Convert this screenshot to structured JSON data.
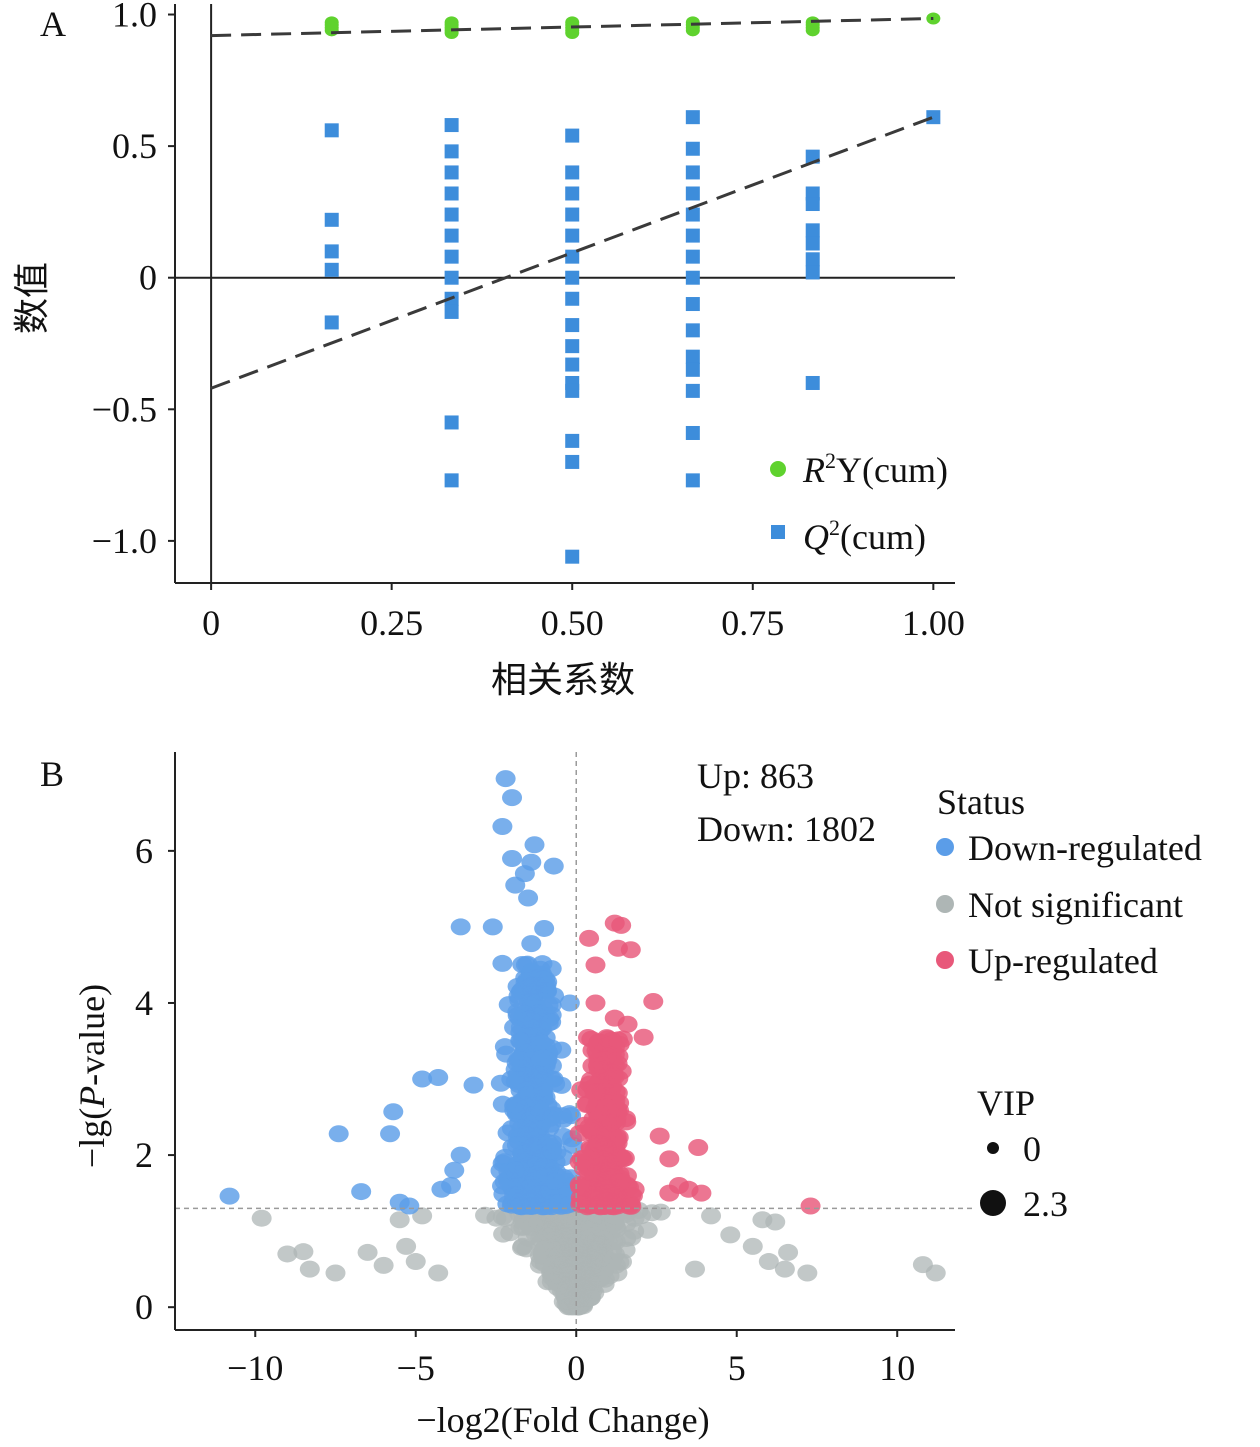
{
  "colors": {
    "r2_green": "#5fd22e",
    "q2_blue": "#3d8ddb",
    "down_blue": "#5b9de8",
    "not_sig_gray": "#aeb6b5",
    "up_red": "#e8587a",
    "dashed_line": "#3a3a3a",
    "threshold_line": "#9a9a9a"
  },
  "chart_data": [
    {
      "panel_label": "A",
      "type": "scatter",
      "xlabel": "相关系数",
      "ylabel": "数值",
      "xlim": [
        -0.05,
        1.03
      ],
      "ylim": [
        -1.16,
        1.04
      ],
      "x_ticks": [
        0,
        0.25,
        0.5,
        0.75,
        1.0
      ],
      "x_tick_labels": [
        "0",
        "0.25",
        "0.50",
        "0.75",
        "1.00"
      ],
      "y_ticks": [
        1.0,
        0.5,
        0,
        -0.5,
        -1.0
      ],
      "y_tick_labels": [
        "1.0",
        "0.5",
        "0",
        "−0.5",
        "−1.0"
      ],
      "reference_lines": {
        "x": 0,
        "y": 0
      },
      "legend_position": "bottom-right",
      "series": [
        {
          "name": "R2Y(cum)",
          "legend_parts": {
            "italic": "R",
            "sup": "2",
            "rest": "Y(cum)"
          },
          "marker": "circle",
          "color_key": "r2_green",
          "points": [
            {
              "x": 0.167,
              "y": 0.97
            },
            {
              "x": 0.167,
              "y": 0.96
            },
            {
              "x": 0.167,
              "y": 0.95
            },
            {
              "x": 0.167,
              "y": 0.94
            },
            {
              "x": 0.333,
              "y": 0.97
            },
            {
              "x": 0.333,
              "y": 0.96
            },
            {
              "x": 0.333,
              "y": 0.95
            },
            {
              "x": 0.333,
              "y": 0.94
            },
            {
              "x": 0.333,
              "y": 0.93
            },
            {
              "x": 0.5,
              "y": 0.97
            },
            {
              "x": 0.5,
              "y": 0.96
            },
            {
              "x": 0.5,
              "y": 0.95
            },
            {
              "x": 0.5,
              "y": 0.94
            },
            {
              "x": 0.5,
              "y": 0.93
            },
            {
              "x": 0.667,
              "y": 0.97
            },
            {
              "x": 0.667,
              "y": 0.96
            },
            {
              "x": 0.667,
              "y": 0.95
            },
            {
              "x": 0.667,
              "y": 0.94
            },
            {
              "x": 0.833,
              "y": 0.97
            },
            {
              "x": 0.833,
              "y": 0.96
            },
            {
              "x": 0.833,
              "y": 0.95
            },
            {
              "x": 0.833,
              "y": 0.94
            },
            {
              "x": 1.0,
              "y": 0.985
            }
          ],
          "fit_line": {
            "x": [
              0,
              1.0
            ],
            "y": [
              0.92,
              0.985
            ]
          }
        },
        {
          "name": "Q2(cum)",
          "legend_parts": {
            "italic": "Q",
            "sup": "2",
            "rest": "(cum)"
          },
          "marker": "square",
          "color_key": "q2_blue",
          "points": [
            {
              "x": 0.167,
              "y": 0.56
            },
            {
              "x": 0.167,
              "y": 0.22
            },
            {
              "x": 0.167,
              "y": 0.1
            },
            {
              "x": 0.167,
              "y": 0.03
            },
            {
              "x": 0.167,
              "y": -0.17
            },
            {
              "x": 0.333,
              "y": 0.58
            },
            {
              "x": 0.333,
              "y": 0.48
            },
            {
              "x": 0.333,
              "y": 0.4
            },
            {
              "x": 0.333,
              "y": 0.32
            },
            {
              "x": 0.333,
              "y": 0.24
            },
            {
              "x": 0.333,
              "y": 0.16
            },
            {
              "x": 0.333,
              "y": 0.08
            },
            {
              "x": 0.333,
              "y": 0.0
            },
            {
              "x": 0.333,
              "y": -0.08
            },
            {
              "x": 0.333,
              "y": -0.13
            },
            {
              "x": 0.333,
              "y": -0.55
            },
            {
              "x": 0.333,
              "y": -0.77
            },
            {
              "x": 0.5,
              "y": 0.54
            },
            {
              "x": 0.5,
              "y": 0.4
            },
            {
              "x": 0.5,
              "y": 0.32
            },
            {
              "x": 0.5,
              "y": 0.24
            },
            {
              "x": 0.5,
              "y": 0.16
            },
            {
              "x": 0.5,
              "y": 0.08
            },
            {
              "x": 0.5,
              "y": 0.0
            },
            {
              "x": 0.5,
              "y": -0.08
            },
            {
              "x": 0.5,
              "y": -0.18
            },
            {
              "x": 0.5,
              "y": -0.26
            },
            {
              "x": 0.5,
              "y": -0.33
            },
            {
              "x": 0.5,
              "y": -0.4
            },
            {
              "x": 0.5,
              "y": -0.43
            },
            {
              "x": 0.5,
              "y": -0.62
            },
            {
              "x": 0.5,
              "y": -0.7
            },
            {
              "x": 0.5,
              "y": -1.06
            },
            {
              "x": 0.667,
              "y": 0.61
            },
            {
              "x": 0.667,
              "y": 0.49
            },
            {
              "x": 0.667,
              "y": 0.4
            },
            {
              "x": 0.667,
              "y": 0.32
            },
            {
              "x": 0.667,
              "y": 0.24
            },
            {
              "x": 0.667,
              "y": 0.16
            },
            {
              "x": 0.667,
              "y": 0.08
            },
            {
              "x": 0.667,
              "y": 0.0
            },
            {
              "x": 0.667,
              "y": -0.1
            },
            {
              "x": 0.667,
              "y": -0.2
            },
            {
              "x": 0.667,
              "y": -0.3
            },
            {
              "x": 0.667,
              "y": -0.35
            },
            {
              "x": 0.667,
              "y": -0.43
            },
            {
              "x": 0.667,
              "y": -0.59
            },
            {
              "x": 0.667,
              "y": -0.77
            },
            {
              "x": 0.833,
              "y": 0.46
            },
            {
              "x": 0.833,
              "y": 0.32
            },
            {
              "x": 0.833,
              "y": 0.28
            },
            {
              "x": 0.833,
              "y": 0.18
            },
            {
              "x": 0.833,
              "y": 0.13
            },
            {
              "x": 0.833,
              "y": 0.07
            },
            {
              "x": 0.833,
              "y": 0.02
            },
            {
              "x": 0.833,
              "y": -0.4
            },
            {
              "x": 1.0,
              "y": 0.61
            }
          ],
          "fit_line": {
            "x": [
              0,
              1.0
            ],
            "y": [
              -0.42,
              0.61
            ]
          }
        }
      ]
    },
    {
      "panel_label": "B",
      "type": "scatter",
      "subtype": "volcano",
      "xlabel": "−log2(Fold Change)",
      "ylabel": "−lg(P-value)",
      "ylabel_parts": {
        "pre": "−lg(",
        "italic": "P",
        "post": "-value)"
      },
      "xlim": [
        -12.5,
        11.8
      ],
      "ylim": [
        -0.3,
        7.3
      ],
      "x_ticks": [
        -10,
        -5,
        0,
        5,
        10
      ],
      "x_tick_labels": [
        "−10",
        "−5",
        "0",
        "5",
        "10"
      ],
      "y_ticks": [
        0,
        2,
        4,
        6
      ],
      "y_tick_labels": [
        "0",
        "2",
        "4",
        "6"
      ],
      "threshold_lines": {
        "x": 0,
        "y": 1.3
      },
      "annotations": [
        "Up: 863",
        "Down: 1802"
      ],
      "legend": {
        "title": "Status",
        "position": "right",
        "items": [
          {
            "label": "Down-regulated",
            "color_key": "down_blue"
          },
          {
            "label": "Not significant",
            "color_key": "not_sig_gray"
          },
          {
            "label": "Up-regulated",
            "color_key": "up_red"
          }
        ]
      },
      "size_legend": {
        "title": "VIP",
        "items": [
          {
            "label": "0",
            "value": 0
          },
          {
            "label": "2.3",
            "value": 2.3
          }
        ]
      },
      "counts": {
        "up": 863,
        "down": 1802
      },
      "series": [
        {
          "name": "Down-regulated",
          "color_key": "down_blue",
          "cluster": {
            "x_range": [
              -3.6,
              -0.1
            ],
            "y_range": [
              1.3,
              4.6
            ],
            "peak_x": -1.3
          },
          "points": [
            {
              "x": -2.2,
              "y": 6.95
            },
            {
              "x": -2.0,
              "y": 6.7
            },
            {
              "x": -2.3,
              "y": 6.32
            },
            {
              "x": -1.3,
              "y": 6.08
            },
            {
              "x": -2.0,
              "y": 5.9
            },
            {
              "x": -0.7,
              "y": 5.8
            },
            {
              "x": -1.4,
              "y": 5.85
            },
            {
              "x": -1.6,
              "y": 5.7
            },
            {
              "x": -1.9,
              "y": 5.55
            },
            {
              "x": -1.5,
              "y": 5.38
            },
            {
              "x": -3.6,
              "y": 5.0
            },
            {
              "x": -2.6,
              "y": 5.0
            },
            {
              "x": -1.0,
              "y": 4.98
            },
            {
              "x": -1.4,
              "y": 4.78
            },
            {
              "x": -2.3,
              "y": 4.52
            },
            {
              "x": -0.2,
              "y": 4.0
            },
            {
              "x": -4.8,
              "y": 3.0
            },
            {
              "x": -4.3,
              "y": 3.02
            },
            {
              "x": -3.2,
              "y": 2.92
            },
            {
              "x": -5.7,
              "y": 2.57
            },
            {
              "x": -7.4,
              "y": 2.28
            },
            {
              "x": -5.8,
              "y": 2.28
            },
            {
              "x": -3.6,
              "y": 2.0
            },
            {
              "x": -3.8,
              "y": 1.8
            },
            {
              "x": -10.8,
              "y": 1.46
            },
            {
              "x": -6.7,
              "y": 1.52
            },
            {
              "x": -5.5,
              "y": 1.38
            },
            {
              "x": -5.2,
              "y": 1.33
            },
            {
              "x": -4.2,
              "y": 1.55
            },
            {
              "x": -3.9,
              "y": 1.6
            }
          ]
        },
        {
          "name": "Not significant",
          "color_key": "not_sig_gray",
          "cluster": {
            "x_range": [
              -4.5,
              4.5
            ],
            "y_range": [
              0.0,
              1.3
            ],
            "peak_x": 0
          },
          "points": [
            {
              "x": -9.8,
              "y": 1.17
            },
            {
              "x": -9.0,
              "y": 0.7
            },
            {
              "x": -8.5,
              "y": 0.73
            },
            {
              "x": -8.3,
              "y": 0.5
            },
            {
              "x": -7.5,
              "y": 0.45
            },
            {
              "x": -6.5,
              "y": 0.72
            },
            {
              "x": -6.0,
              "y": 0.55
            },
            {
              "x": -5.5,
              "y": 1.15
            },
            {
              "x": -5.3,
              "y": 0.8
            },
            {
              "x": -5.0,
              "y": 0.6
            },
            {
              "x": -4.8,
              "y": 1.2
            },
            {
              "x": 4.2,
              "y": 1.2
            },
            {
              "x": 4.8,
              "y": 0.95
            },
            {
              "x": 5.5,
              "y": 0.8
            },
            {
              "x": 5.8,
              "y": 1.15
            },
            {
              "x": 6.2,
              "y": 1.12
            },
            {
              "x": 6.0,
              "y": 0.6
            },
            {
              "x": 6.5,
              "y": 0.5
            },
            {
              "x": 7.2,
              "y": 0.45
            },
            {
              "x": 6.6,
              "y": 0.72
            },
            {
              "x": 10.8,
              "y": 0.56
            },
            {
              "x": 11.2,
              "y": 0.45
            },
            {
              "x": 3.7,
              "y": 0.5
            },
            {
              "x": -4.3,
              "y": 0.45
            }
          ]
        },
        {
          "name": "Up-regulated",
          "color_key": "up_red",
          "cluster": {
            "x_range": [
              0.1,
              3.2
            ],
            "y_range": [
              1.3,
              3.6
            ],
            "peak_x": 0.9
          },
          "points": [
            {
              "x": 1.2,
              "y": 5.05
            },
            {
              "x": 1.4,
              "y": 5.02
            },
            {
              "x": 0.4,
              "y": 4.85
            },
            {
              "x": 1.3,
              "y": 4.72
            },
            {
              "x": 1.7,
              "y": 4.7
            },
            {
              "x": 0.6,
              "y": 4.5
            },
            {
              "x": 2.4,
              "y": 4.02
            },
            {
              "x": 0.6,
              "y": 4.0
            },
            {
              "x": 1.6,
              "y": 3.72
            },
            {
              "x": 2.1,
              "y": 3.55
            },
            {
              "x": 1.2,
              "y": 3.8
            },
            {
              "x": 2.6,
              "y": 2.25
            },
            {
              "x": 3.8,
              "y": 2.1
            },
            {
              "x": 2.9,
              "y": 1.95
            },
            {
              "x": 3.2,
              "y": 1.6
            },
            {
              "x": 3.5,
              "y": 1.55
            },
            {
              "x": 3.9,
              "y": 1.5
            },
            {
              "x": 2.9,
              "y": 1.5
            },
            {
              "x": 7.3,
              "y": 1.33
            }
          ]
        }
      ]
    }
  ]
}
